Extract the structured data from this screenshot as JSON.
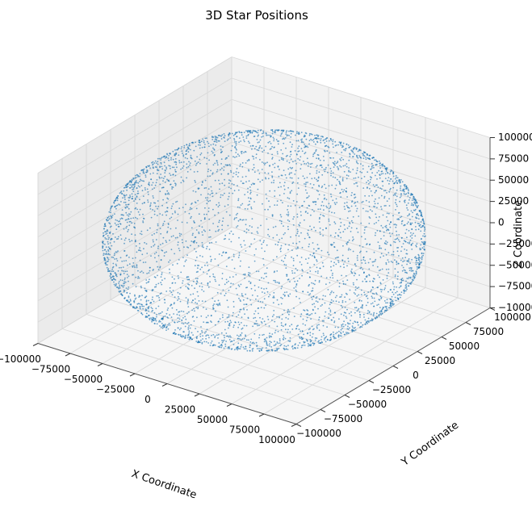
{
  "chart_data": {
    "type": "scatter",
    "projection": "3d",
    "title": "3D Star Positions",
    "xlabel": "X Coordinate",
    "ylabel": "Y Coordinate",
    "zlabel": "Z Coordinate",
    "xlim": [
      -100000,
      100000
    ],
    "ylim": [
      -100000,
      100000
    ],
    "zlim": [
      -100000,
      100000
    ],
    "xticks": [
      "−100000",
      "−75000",
      "−50000",
      "−25000",
      "0",
      "25000",
      "50000",
      "75000",
      "100000"
    ],
    "yticks": [
      "−100000",
      "−75000",
      "−50000",
      "−25000",
      "0",
      "25000",
      "50000",
      "75000",
      "100000"
    ],
    "zticks": [
      "−100000",
      "−75000",
      "−50000",
      "−25000",
      "0",
      "25000",
      "50000",
      "75000",
      "100000"
    ],
    "tick_values": [
      -100000,
      -75000,
      -50000,
      -25000,
      0,
      25000,
      50000,
      75000,
      100000
    ],
    "grid": true,
    "marker_color": "#1f77b4",
    "pane_color": "#f2f2f2",
    "distribution": "points on the surface of a sphere of radius 100000 centred at the origin, several thousand stars, denser clusters near the upper-right and lower-left",
    "series": [
      {
        "sample_points": [
          [
            70000,
            -10000,
            70000
          ],
          [
            -60000,
            30000,
            -75000
          ],
          [
            10000,
            80000,
            58000
          ],
          [
            -95000,
            5000,
            30000
          ],
          [
            40000,
            -85000,
            -35000
          ],
          [
            0,
            0,
            100000
          ],
          [
            0,
            0,
            -100000
          ],
          [
            100000,
            0,
            0
          ],
          [
            -100000,
            0,
            0
          ],
          [
            0,
            100000,
            0
          ],
          [
            0,
            -100000,
            0
          ]
        ]
      }
    ]
  }
}
